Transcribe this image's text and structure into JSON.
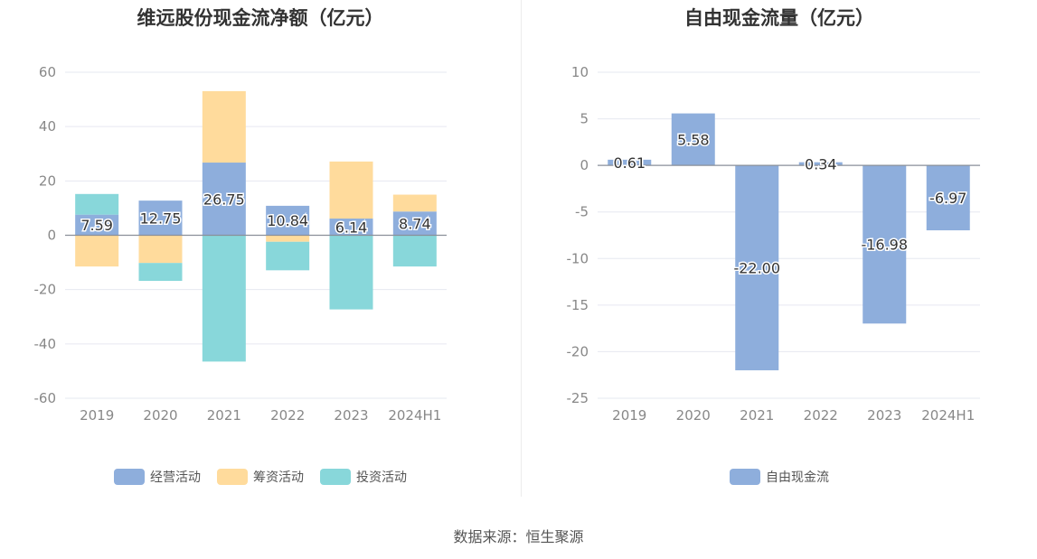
{
  "source_label": "数据来源：恒生聚源",
  "chart_data": [
    {
      "type": "bar",
      "stacked": true,
      "title": "维远股份现金流净额（亿元）",
      "categories": [
        "2019",
        "2020",
        "2021",
        "2022",
        "2023",
        "2024H1"
      ],
      "ylim": [
        -60,
        60
      ],
      "yticks": [
        60,
        40,
        20,
        0,
        -20,
        -40,
        -60
      ],
      "grid": true,
      "legend_position": "bottom",
      "series": [
        {
          "name": "经营活动",
          "color": "#8eaedc",
          "values": [
            7.59,
            12.75,
            26.75,
            10.84,
            6.14,
            8.74
          ],
          "show_labels": true
        },
        {
          "name": "筹资活动",
          "color": "#ffdb9c",
          "values": [
            -11.5,
            -10.2,
            26.3,
            -2.4,
            21.0,
            6.2
          ],
          "show_labels": false
        },
        {
          "name": "投资活动",
          "color": "#88d7da",
          "values": [
            7.6,
            -6.6,
            -46.5,
            -10.5,
            -27.3,
            -11.5
          ],
          "show_labels": false
        }
      ]
    },
    {
      "type": "bar",
      "title": "自由现金流量（亿元）",
      "categories": [
        "2019",
        "2020",
        "2021",
        "2022",
        "2023",
        "2024H1"
      ],
      "ylim": [
        -25,
        10
      ],
      "yticks": [
        10,
        5,
        0,
        -5,
        -10,
        -15,
        -20,
        -25
      ],
      "grid": true,
      "legend_position": "bottom",
      "series": [
        {
          "name": "自由现金流",
          "color": "#8eaedc",
          "values": [
            0.61,
            5.58,
            -22.0,
            0.34,
            -16.98,
            -6.97
          ],
          "show_labels": true
        }
      ]
    }
  ]
}
